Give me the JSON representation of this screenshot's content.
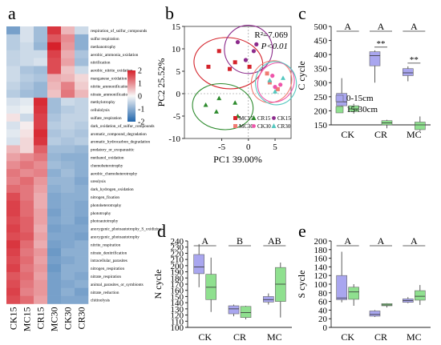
{
  "chart_data": [
    {
      "panel": "a",
      "type": "heatmap",
      "columns": [
        "CK15",
        "MC15",
        "CR15",
        "MC30",
        "CK30",
        "CR30"
      ],
      "rows": [
        "respiration_of_sulfur_compounds",
        "sulfur respiration",
        "methanotrophy",
        "aerobic_ammonia_oxidation",
        "nitrification",
        "aerobic_nitrite_oxidation",
        "manganese_oxidation",
        "nitrite_ammonification",
        "nitrate_ammonification",
        "methylotrophy",
        "cellulolysis",
        "sulfate_respiration",
        "dark_oxidation_of_sulfur_compounds",
        "aromatic_compound_degradation",
        "aromatic_hydrocarbon_degradation",
        "predatory_or_exoparasitic",
        "methanol_oxidation",
        "chemoheterotrophy",
        "aerobic_chemoheterotrophy",
        "ureolysis",
        "dark_hydrogen_oxidation",
        "nitrogen_fixation",
        "photoheterotrophy",
        "phototrophy",
        "photoautotrophy",
        "anoxygenic_photoautotrophy_S_oxidizing",
        "anoxygenic_photoautotrophy",
        "nitrite_respiration",
        "nitrate_denitrification",
        "intracellular_parasites",
        "nitrogen_respiration",
        "nitrate_respiration",
        "animal_parasites_or_symbionts",
        "nitrate_reduction",
        "chitinolysis"
      ],
      "values": [
        [
          -1.2,
          -0.3,
          -0.8,
          1.8,
          0.6,
          -0.4
        ],
        [
          -0.6,
          -0.3,
          -0.8,
          1.5,
          1.0,
          -1.0
        ],
        [
          -0.6,
          -0.4,
          -0.9,
          2.0,
          0.9,
          -1.0
        ],
        [
          -0.5,
          -0.4,
          -0.4,
          1.7,
          0.7,
          -0.7
        ],
        [
          -0.5,
          -0.4,
          -0.3,
          1.6,
          0.8,
          -0.8
        ],
        [
          -0.4,
          -0.7,
          -0.8,
          1.6,
          0.5,
          -0.4
        ],
        [
          -0.4,
          -0.6,
          -0.7,
          0.7,
          0.6,
          0.3
        ],
        [
          -0.5,
          -0.7,
          -0.9,
          0.6,
          1.1,
          0.4
        ],
        [
          -0.6,
          -0.8,
          -0.9,
          0.5,
          1.2,
          0.6
        ],
        [
          -0.3,
          -0.2,
          1.9,
          -0.8,
          -0.4,
          -0.5
        ],
        [
          -0.2,
          -0.1,
          1.8,
          -0.8,
          -0.6,
          -0.5
        ],
        [
          0.2,
          -0.4,
          1.7,
          -0.7,
          -0.5,
          -0.5
        ],
        [
          -0.3,
          0.1,
          1.7,
          -0.6,
          -0.5,
          -0.6
        ],
        [
          -0.2,
          0.2,
          1.9,
          -0.7,
          -0.6,
          -0.7
        ],
        [
          -0.3,
          0.3,
          1.8,
          -0.6,
          -0.7,
          -0.6
        ],
        [
          0.6,
          0.3,
          1.4,
          -0.8,
          -0.8,
          -0.9
        ],
        [
          0.8,
          1.0,
          1.2,
          -0.9,
          -1.0,
          -1.0
        ],
        [
          1.0,
          1.2,
          1.0,
          -0.8,
          -0.9,
          -1.0
        ],
        [
          1.2,
          1.0,
          1.1,
          -1.0,
          -0.8,
          -1.0
        ],
        [
          1.1,
          1.3,
          0.9,
          -0.9,
          -0.9,
          -1.1
        ],
        [
          1.3,
          1.2,
          0.8,
          -1.0,
          -0.9,
          -1.0
        ],
        [
          1.6,
          1.2,
          0.7,
          -1.1,
          -1.0,
          -1.0
        ],
        [
          1.7,
          1.3,
          0.7,
          -1.1,
          -1.0,
          -1.1
        ],
        [
          1.7,
          1.3,
          0.8,
          -1.2,
          -1.0,
          -1.1
        ],
        [
          1.6,
          1.4,
          0.8,
          -1.1,
          -1.0,
          -1.2
        ],
        [
          1.7,
          1.4,
          0.7,
          -1.2,
          -1.1,
          -1.1
        ],
        [
          1.6,
          1.5,
          0.8,
          -1.1,
          -1.1,
          -1.2
        ],
        [
          1.8,
          1.3,
          0.7,
          -1.2,
          -1.1,
          -1.0
        ],
        [
          1.7,
          1.2,
          0.9,
          -1.3,
          -1.0,
          -1.0
        ],
        [
          1.6,
          1.3,
          0.8,
          -1.2,
          -1.1,
          -1.0
        ],
        [
          1.7,
          1.2,
          0.9,
          -1.3,
          -1.0,
          -1.0
        ],
        [
          1.5,
          1.3,
          0.8,
          -1.2,
          -1.0,
          -1.1
        ],
        [
          1.6,
          1.2,
          0.9,
          -1.2,
          -1.1,
          -1.0
        ],
        [
          1.7,
          1.1,
          0.9,
          -1.2,
          -1.0,
          -1.2
        ],
        [
          1.6,
          1.3,
          0.8,
          -1.2,
          -1.1,
          -1.1
        ]
      ],
      "scale": {
        "min": -2,
        "max": 2,
        "ticks": [
          2,
          1,
          0,
          -1,
          -2
        ],
        "low_color": "#2166ac",
        "mid_color": "#f7f7f7",
        "high_color": "#d6212b"
      }
    },
    {
      "panel": "b",
      "type": "scatter",
      "xlabel": "PC1 39.00%",
      "ylabel": "PC2 25.52%",
      "xlim": [
        -12,
        8
      ],
      "ylim": [
        -10,
        15
      ],
      "xticks": [
        -5,
        0,
        5
      ],
      "yticks": [
        -10,
        -5,
        0,
        5,
        10,
        15
      ],
      "annotation_r2": "R²=7.069",
      "annotation_p": "P<0.01",
      "series": [
        {
          "name": "MC15",
          "marker": "square",
          "color": "#d4232b",
          "points": [
            [
              -5.5,
              9.5
            ],
            [
              -7.5,
              6
            ],
            [
              -2.5,
              7
            ],
            [
              0.2,
              6
            ],
            [
              -3.5,
              5.5
            ]
          ]
        },
        {
          "name": "CR15",
          "marker": "triangle",
          "color": "#2e8b2e",
          "points": [
            [
              -8,
              -2.5
            ],
            [
              -5.5,
              -1
            ],
            [
              -2.5,
              -2
            ],
            [
              -6,
              -4
            ],
            [
              -2,
              -5
            ]
          ]
        },
        {
          "name": "CK15",
          "marker": "circle",
          "color": "#8b2a8b",
          "points": [
            [
              -2,
              11.5
            ],
            [
              1.5,
              11
            ],
            [
              -0.5,
              7.5
            ],
            [
              1,
              9.5
            ]
          ]
        },
        {
          "name": "MC30",
          "marker": "square",
          "color": "#f07b72",
          "points": [
            [
              3.5,
              4.5
            ],
            [
              5.5,
              1
            ],
            [
              4,
              2.5
            ]
          ]
        },
        {
          "name": "CK30",
          "marker": "circle",
          "color": "#ee55aa",
          "points": [
            [
              5,
              1.5
            ],
            [
              6,
              2
            ],
            [
              4.5,
              4
            ]
          ]
        },
        {
          "name": "CR30",
          "marker": "triangle",
          "color": "#55c8c0",
          "points": [
            [
              4,
              3
            ],
            [
              6.5,
              3.5
            ],
            [
              5,
              0.5
            ]
          ]
        }
      ]
    },
    {
      "panel": "c",
      "type": "box",
      "ylabel": "C cycle",
      "categories": [
        "CK",
        "CR",
        "MC"
      ],
      "ylim": [
        150,
        500
      ],
      "yticks": [
        150,
        200,
        250,
        300,
        350,
        400,
        450,
        500
      ],
      "legend": [
        "0-15cm",
        "15-30cm"
      ],
      "group_letters": [
        "A",
        "A",
        "A"
      ],
      "significance": [
        "",
        "**",
        "**"
      ],
      "series": [
        {
          "name": "0-15cm",
          "color": "#a9a6ef",
          "boxes": [
            {
              "min": 205,
              "q1": 218,
              "median": 232,
              "q3": 262,
              "max": 316
            },
            {
              "min": 300,
              "q1": 360,
              "median": 396,
              "q3": 410,
              "max": 415
            },
            {
              "min": 305,
              "q1": 325,
              "median": 335,
              "q3": 350,
              "max": 358
            }
          ]
        },
        {
          "name": "15-30cm",
          "color": "#8fe08f",
          "boxes": [
            {
              "min": 190,
              "q1": 197,
              "median": 207,
              "q3": 218,
              "max": 225
            },
            {
              "min": 138,
              "q1": 150,
              "median": 157,
              "q3": 165,
              "max": 168
            },
            {
              "min": 128,
              "q1": 133,
              "median": 150,
              "q3": 160,
              "max": 180
            }
          ]
        }
      ]
    },
    {
      "panel": "d",
      "type": "box",
      "ylabel": "N cycle",
      "categories": [
        "CK",
        "CR",
        "MC"
      ],
      "ylim": [
        100,
        240
      ],
      "yticks": [
        100,
        110,
        120,
        130,
        140,
        150,
        160,
        170,
        180,
        190,
        200,
        210,
        220,
        230,
        240
      ],
      "group_letters": [
        "A",
        "B",
        "AB"
      ],
      "series": [
        {
          "name": "0-15cm",
          "color": "#a9a6ef",
          "boxes": [
            {
              "min": 165,
              "q1": 187,
              "median": 198,
              "q3": 218,
              "max": 235
            },
            {
              "min": 118,
              "q1": 122,
              "median": 130,
              "q3": 135,
              "max": 137
            },
            {
              "min": 137,
              "q1": 141,
              "median": 145,
              "q3": 150,
              "max": 155
            }
          ]
        },
        {
          "name": "15-30cm",
          "color": "#8fe08f",
          "boxes": [
            {
              "min": 125,
              "q1": 145,
              "median": 165,
              "q3": 186,
              "max": 213
            },
            {
              "min": 113,
              "q1": 116,
              "median": 124,
              "q3": 134,
              "max": 135
            },
            {
              "min": 116,
              "q1": 142,
              "median": 170,
              "q3": 197,
              "max": 205
            }
          ]
        }
      ]
    },
    {
      "panel": "e",
      "type": "box",
      "ylabel": "S cycle",
      "categories": [
        "CK",
        "CR",
        "MC"
      ],
      "ylim": [
        0,
        200
      ],
      "yticks": [
        0,
        20,
        40,
        60,
        80,
        100,
        120,
        140,
        160,
        180,
        200
      ],
      "group_letters": [
        "A",
        "A",
        "A"
      ],
      "series": [
        {
          "name": "0-15cm",
          "color": "#a9a6ef",
          "boxes": [
            {
              "min": 58,
              "q1": 64,
              "median": 68,
              "q3": 120,
              "max": 175
            },
            {
              "min": 24,
              "q1": 26,
              "median": 30,
              "q3": 38,
              "max": 40
            },
            {
              "min": 56,
              "q1": 58,
              "median": 62,
              "q3": 66,
              "max": 70
            }
          ]
        },
        {
          "name": "15-30cm",
          "color": "#8fe08f",
          "boxes": [
            {
              "min": 50,
              "q1": 65,
              "median": 82,
              "q3": 93,
              "max": 100
            },
            {
              "min": 46,
              "q1": 50,
              "median": 52,
              "q3": 55,
              "max": 56
            },
            {
              "min": 52,
              "q1": 63,
              "median": 72,
              "q3": 85,
              "max": 98
            }
          ]
        }
      ]
    }
  ],
  "panel_labels": {
    "a": "a",
    "b": "b",
    "c": "c",
    "d": "d",
    "e": "e"
  }
}
